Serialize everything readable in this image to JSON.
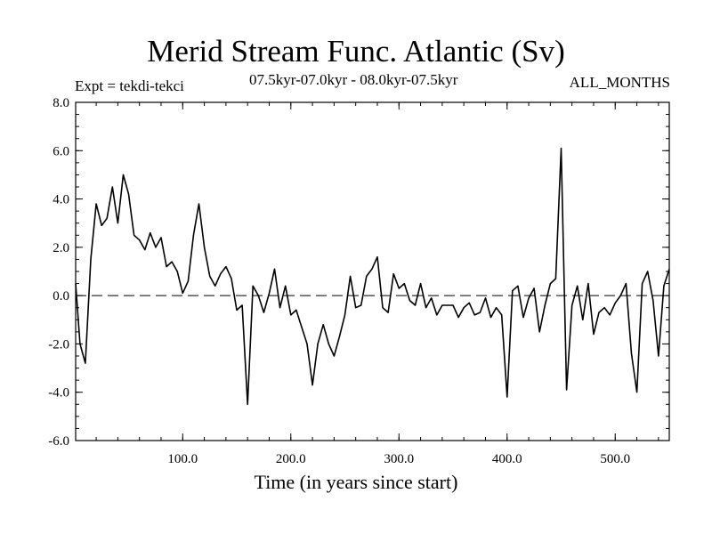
{
  "chart_data": {
    "type": "line",
    "title": "Merid Stream Func. Atlantic (Sv)",
    "subtitle_left": "Expt = tekdi-tekci",
    "subtitle_center": "07.5kyr-07.0kyr - 08.0kyr-07.5kyr",
    "subtitle_right": "ALL_MONTHS",
    "xlabel": "Time (in years since start)",
    "ylabel": "",
    "xlim": [
      1,
      550
    ],
    "ylim": [
      -6,
      8
    ],
    "xticks": [
      100,
      200,
      300,
      400,
      500
    ],
    "xtick_labels": [
      "100.0",
      "200.0",
      "300.0",
      "400.0",
      "500.0"
    ],
    "yticks": [
      -6,
      -4,
      -2,
      0,
      2,
      4,
      6,
      8
    ],
    "ytick_labels": [
      "-6.0",
      "-4.0",
      "-2.0",
      "0.0",
      "2.0",
      "4.0",
      "6.0",
      "8.0"
    ],
    "reference_line": {
      "y": 0,
      "style": "dashed"
    },
    "series": [
      {
        "name": "Merid Stream Func. Atlantic",
        "x": [
          1,
          5,
          10,
          15,
          20,
          25,
          30,
          35,
          40,
          45,
          50,
          55,
          60,
          65,
          70,
          75,
          80,
          85,
          90,
          95,
          100,
          105,
          110,
          115,
          120,
          125,
          130,
          135,
          140,
          145,
          150,
          155,
          160,
          165,
          170,
          175,
          180,
          185,
          190,
          195,
          200,
          205,
          210,
          215,
          220,
          225,
          230,
          235,
          240,
          245,
          250,
          255,
          260,
          265,
          270,
          275,
          280,
          285,
          290,
          295,
          300,
          305,
          310,
          315,
          320,
          325,
          330,
          335,
          340,
          345,
          350,
          355,
          360,
          365,
          370,
          375,
          380,
          385,
          390,
          395,
          400,
          405,
          410,
          415,
          420,
          425,
          430,
          435,
          440,
          445,
          450,
          455,
          460,
          465,
          470,
          475,
          480,
          485,
          490,
          495,
          500,
          505,
          510,
          515,
          520,
          525,
          530,
          535,
          540,
          545,
          550
        ],
        "values": [
          0.5,
          -2.0,
          -2.8,
          1.5,
          3.8,
          2.9,
          3.2,
          4.5,
          3.0,
          5.0,
          4.2,
          2.5,
          2.3,
          1.9,
          2.6,
          2.0,
          2.4,
          1.2,
          1.4,
          1.0,
          0.1,
          0.6,
          2.5,
          3.8,
          2.0,
          0.8,
          0.4,
          0.9,
          1.2,
          0.7,
          -0.6,
          -0.4,
          -4.5,
          0.4,
          0.0,
          -0.7,
          0.1,
          1.1,
          -0.5,
          0.4,
          -0.8,
          -0.6,
          -1.3,
          -2.0,
          -3.7,
          -2.0,
          -1.2,
          -2.0,
          -2.5,
          -1.7,
          -0.8,
          0.8,
          -0.5,
          -0.4,
          0.8,
          1.1,
          1.6,
          -0.5,
          -0.7,
          0.9,
          0.3,
          0.5,
          -0.2,
          -0.4,
          0.5,
          -0.5,
          -0.1,
          -0.8,
          -0.4,
          -0.4,
          -0.4,
          -0.9,
          -0.5,
          -0.3,
          -0.8,
          -0.7,
          -0.1,
          -0.9,
          -0.5,
          -0.8,
          -4.2,
          0.2,
          0.4,
          -0.9,
          -0.1,
          0.3,
          -1.5,
          -0.4,
          0.5,
          0.7,
          6.1,
          -3.9,
          -0.4,
          0.4,
          -1.0,
          0.5,
          -1.6,
          -0.7,
          -0.5,
          -0.8,
          -0.3,
          0.0,
          0.5,
          -2.4,
          -4.0,
          0.5,
          1.0,
          -0.2,
          -2.5,
          0.4,
          1.1
        ]
      }
    ]
  }
}
